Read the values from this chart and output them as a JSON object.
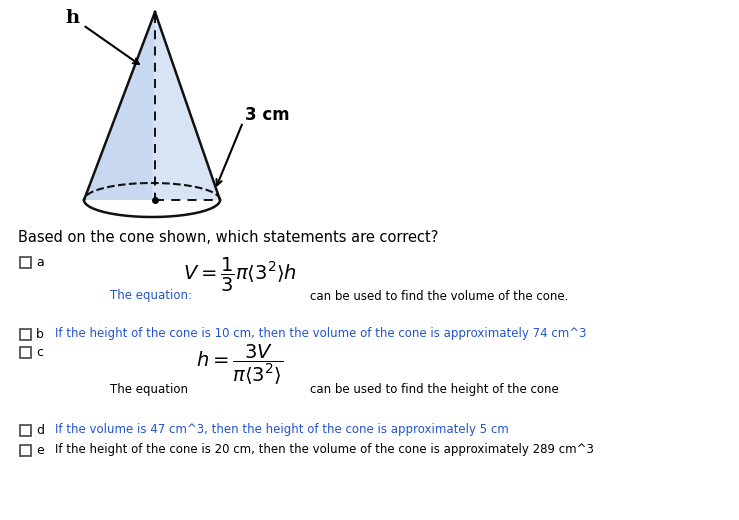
{
  "title": "Based on the cone shown, which statements are correct?",
  "bg_color": "#ffffff",
  "text_color": "#000000",
  "blue_text_color": "#2255cc",
  "option_a_label": "The equation:",
  "option_a_suffix": "can be used to find the volume of the cone.",
  "option_b_text": "If the height of the cone is 10 cm, then the volume of the cone is approximately 74 cm^3",
  "option_c_label": "The equation",
  "option_c_suffix": "can be used to find the height of the cone",
  "option_d_text": "If the volume is 47 cm^3, then the height of the cone is approximately 5 cm",
  "option_e_text": "If the height of the cone is 20 cm, then the volume of the cone is approximately 289 cm^3",
  "cone_label": "3 cm",
  "cone_h_label": "h",
  "cone_fill": "#c8d8f0",
  "cone_fill2": "#d8e4f4",
  "cone_edge": "#111111"
}
